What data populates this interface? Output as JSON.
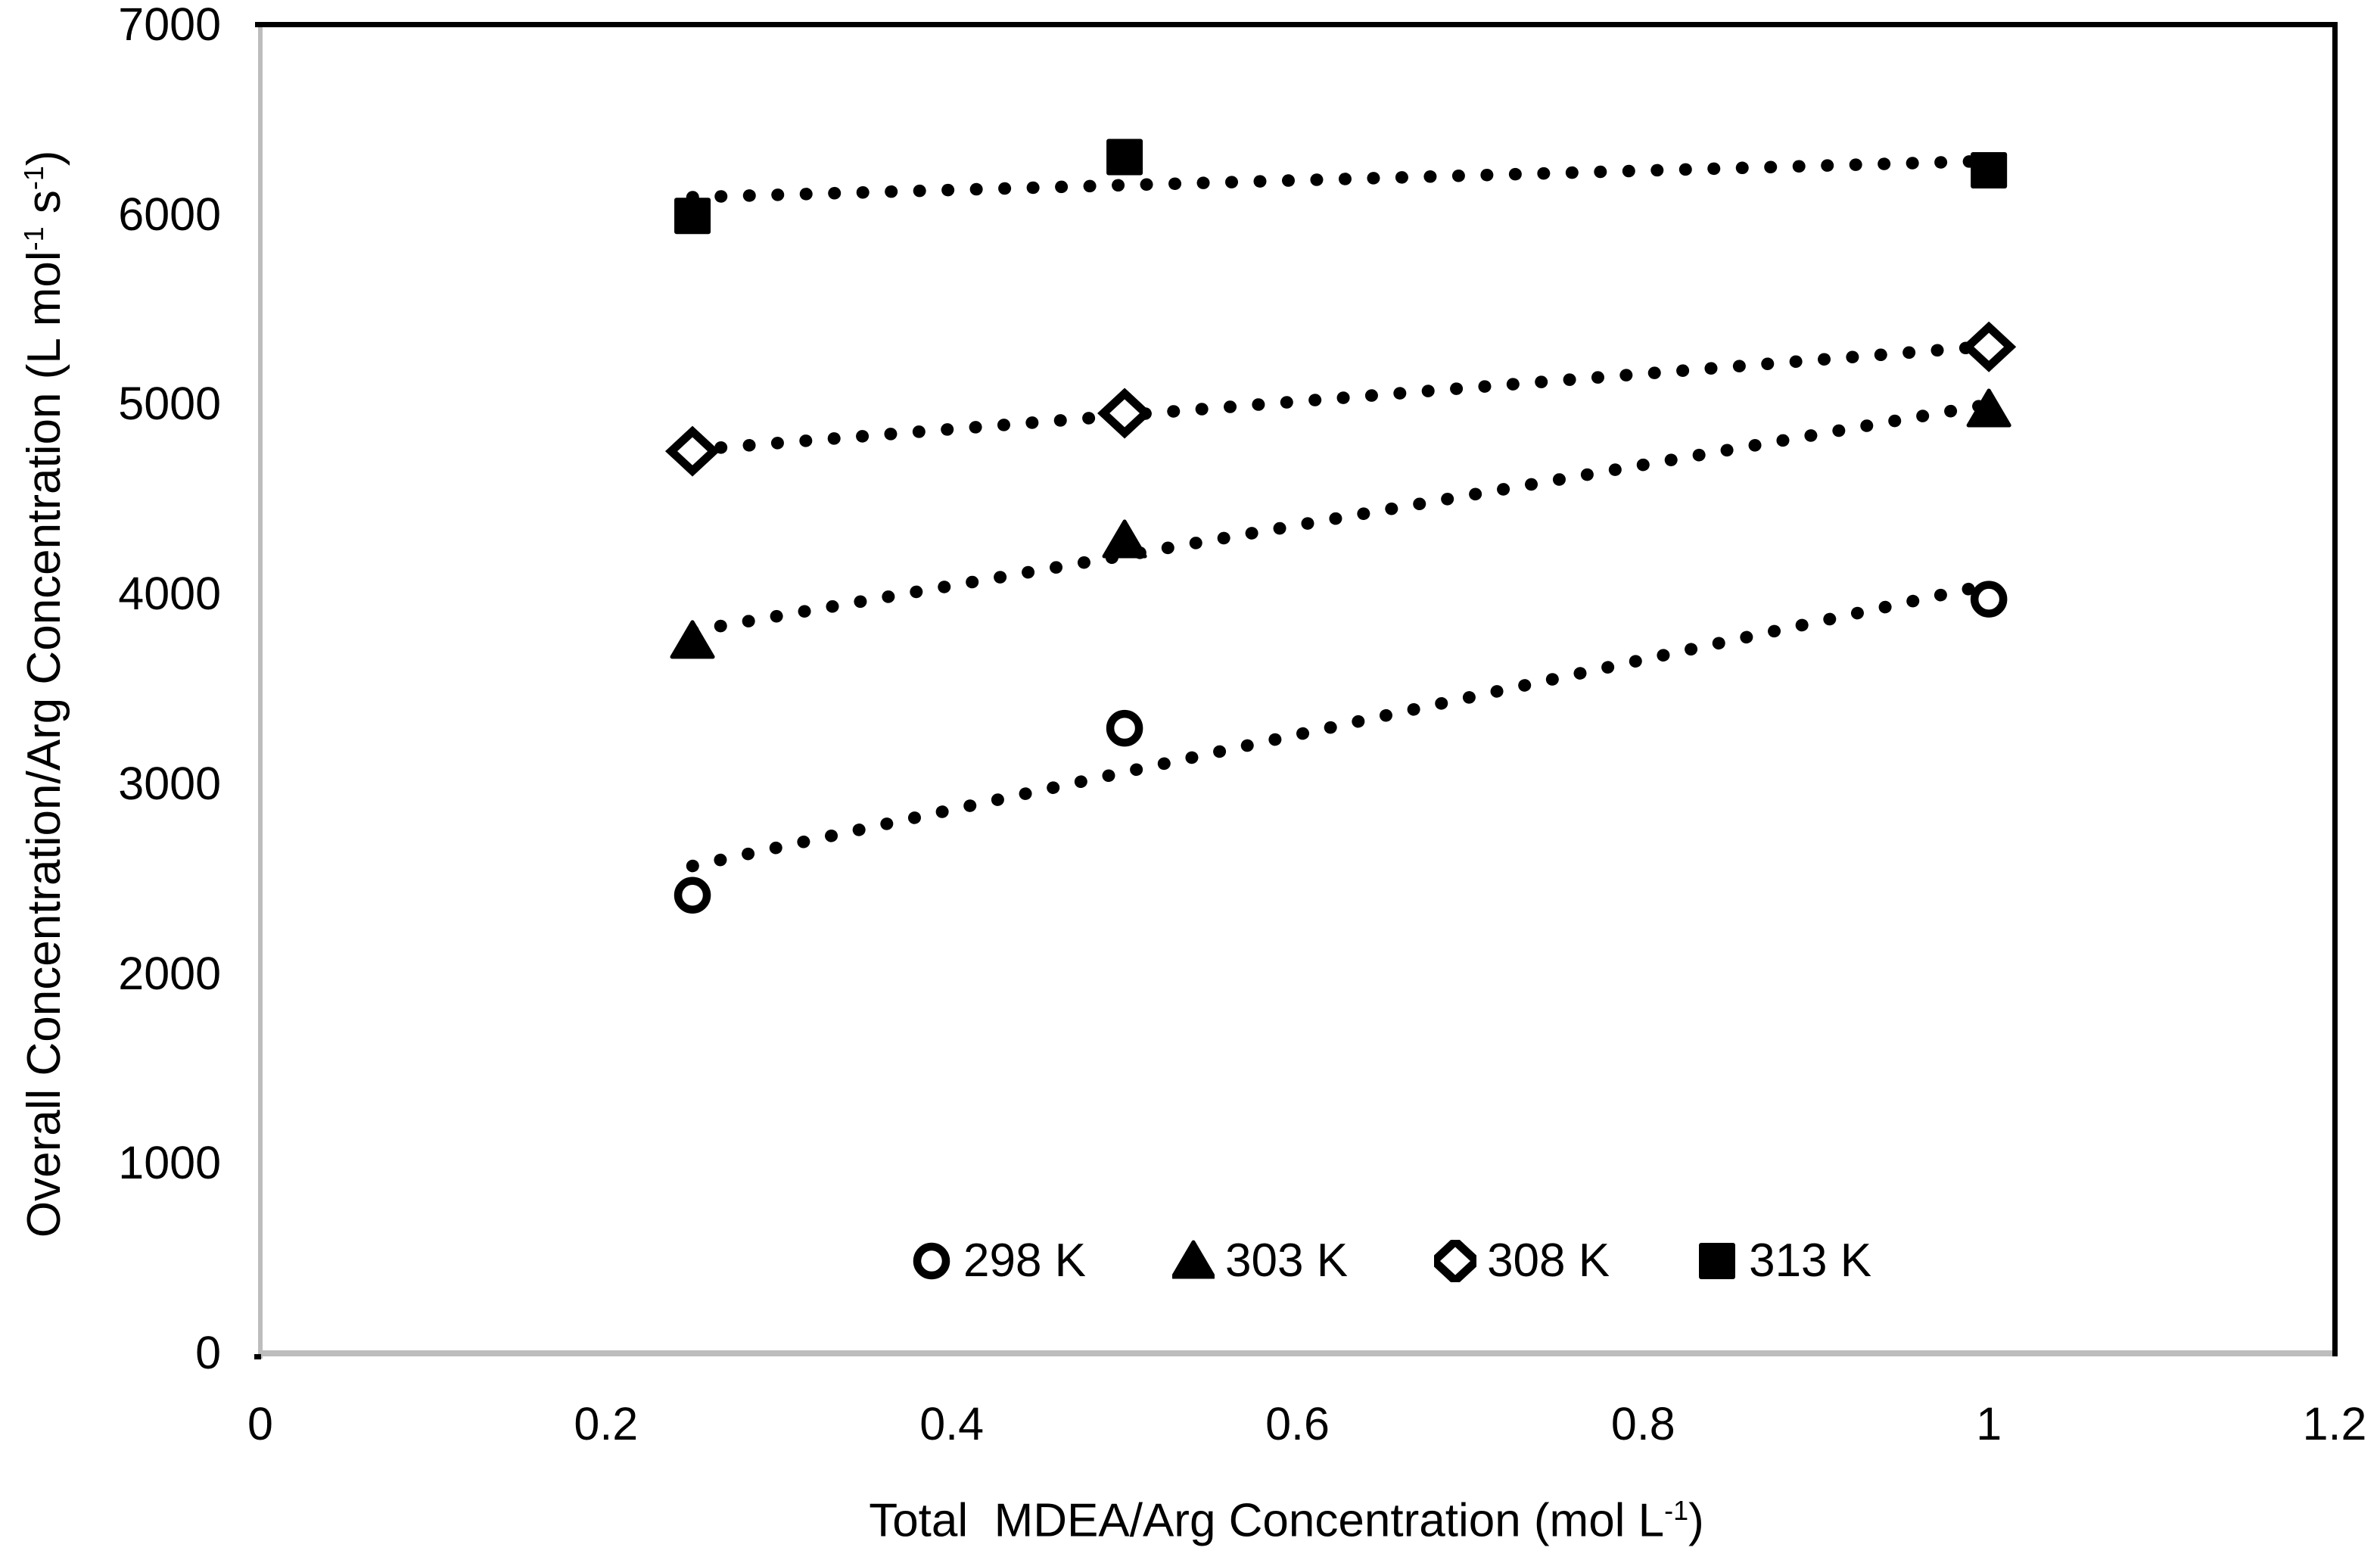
{
  "chart_data": {
    "type": "scatter",
    "title": "",
    "x_label_segments": [
      {
        "t": "Total  MDEA/Arg Concentration (mol L"
      },
      {
        "t": "-1",
        "sup": true
      },
      {
        "t": ")"
      }
    ],
    "y_label_segments": [
      {
        "t": "Overall Concentration/Arg Concentration (L mol"
      },
      {
        "t": "-1",
        "sup": true
      },
      {
        "t": " s"
      },
      {
        "t": "-1",
        "sup": true
      },
      {
        "t": ")"
      }
    ],
    "xlim": [
      0,
      1.2
    ],
    "ylim": [
      0,
      7000
    ],
    "x_tick_values": [
      0,
      0.2,
      0.4,
      0.6,
      0.8,
      1,
      1.2
    ],
    "x_tick_labels": [
      "0",
      "0.2",
      "0.4",
      "0.6",
      "0.8",
      "1",
      "1.2"
    ],
    "y_tick_values": [
      0,
      1000,
      2000,
      3000,
      4000,
      5000,
      6000,
      7000
    ],
    "y_tick_labels": [
      "0",
      "1000",
      "2000",
      "3000",
      "4000",
      "5000",
      "6000",
      "7000"
    ],
    "x": [
      0.25,
      0.5,
      1.0
    ],
    "series": [
      {
        "name": "298 K",
        "marker": "circle-open",
        "values": [
          2410,
          3290,
          3970
        ],
        "trendline": "linear-dotted"
      },
      {
        "name": "303 K",
        "marker": "triangle-filled",
        "values": [
          3750,
          4280,
          4970
        ],
        "trendline": "linear-dotted"
      },
      {
        "name": "308 K",
        "marker": "diamond-open",
        "values": [
          4750,
          4950,
          5300
        ],
        "trendline": "linear-dotted"
      },
      {
        "name": "313 K",
        "marker": "square-filled",
        "values": [
          5990,
          6300,
          6230
        ],
        "trendline": "linear-dotted"
      }
    ],
    "legend": {
      "position": "inside-bottom-center",
      "entries": [
        "298 K",
        "303 K",
        "308 K",
        "313 K"
      ]
    },
    "grid": false,
    "colors": {
      "series": "#000000",
      "plot_border_gray": "#BDBDBD",
      "frame_black": "#000000",
      "text": "#000000",
      "background": "#FFFFFF"
    }
  }
}
